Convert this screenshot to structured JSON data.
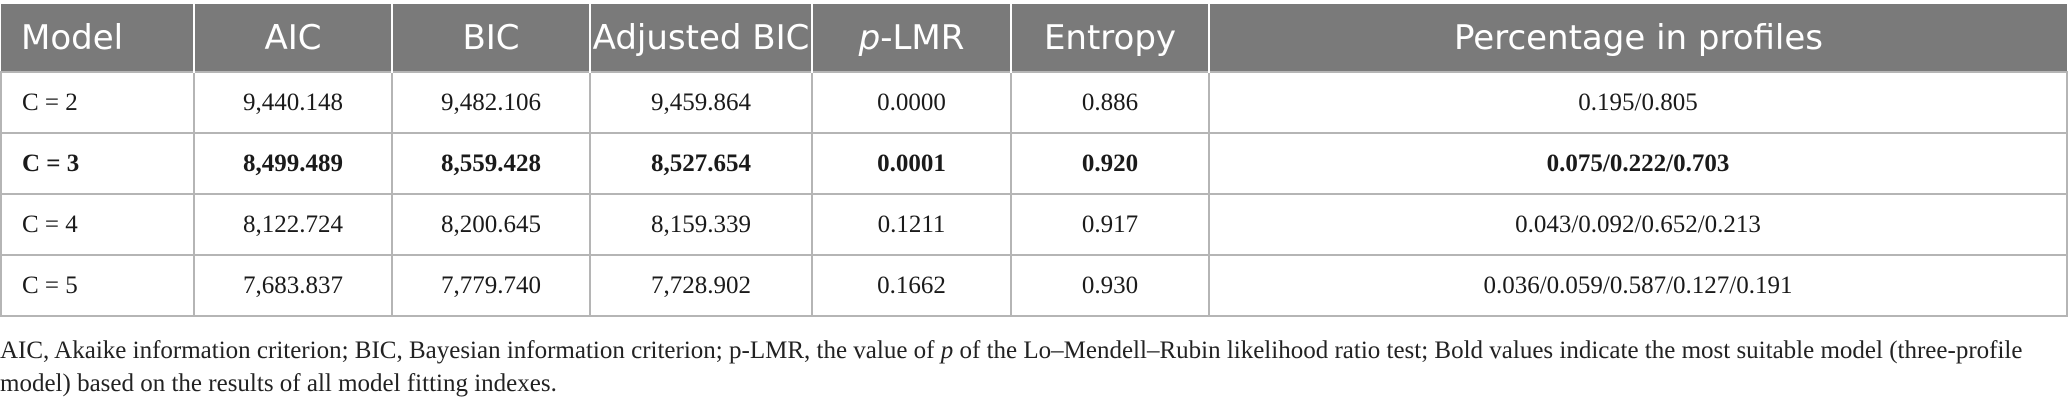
{
  "table": {
    "headers": [
      {
        "pre": "Model",
        "ital": "",
        "post": ""
      },
      {
        "pre": "AIC",
        "ital": "",
        "post": ""
      },
      {
        "pre": "BIC",
        "ital": "",
        "post": ""
      },
      {
        "pre": "Adjusted BIC",
        "ital": "",
        "post": ""
      },
      {
        "pre": "",
        "ital": "p",
        "post": "-LMR"
      },
      {
        "pre": "Entropy",
        "ital": "",
        "post": ""
      },
      {
        "pre": "Percentage in profiles",
        "ital": "",
        "post": ""
      }
    ],
    "rows": [
      {
        "bold": false,
        "cells": [
          "C = 2",
          "9,440.148",
          "9,482.106",
          "9,459.864",
          "0.0000",
          "0.886",
          "0.195/0.805"
        ]
      },
      {
        "bold": true,
        "cells": [
          "C = 3",
          "8,499.489",
          "8,559.428",
          "8,527.654",
          "0.0001",
          "0.920",
          "0.075/0.222/0.703"
        ]
      },
      {
        "bold": false,
        "cells": [
          "C = 4",
          "8,122.724",
          "8,200.645",
          "8,159.339",
          "0.1211",
          "0.917",
          "0.043/0.092/0.652/0.213"
        ]
      },
      {
        "bold": false,
        "cells": [
          "C = 5",
          "7,683.837",
          "7,779.740",
          "7,728.902",
          "0.1662",
          "0.930",
          "0.036/0.059/0.587/0.127/0.191"
        ]
      }
    ]
  },
  "footnote": {
    "part1": "AIC, Akaike information criterion; BIC, Bayesian information criterion; p-LMR, the value of ",
    "ital": "p",
    "part2": " of the Lo–Mendell–Rubin likelihood ratio test; Bold values indicate the most suitable model (three-profile model) based on the results of all model fitting indexes."
  }
}
